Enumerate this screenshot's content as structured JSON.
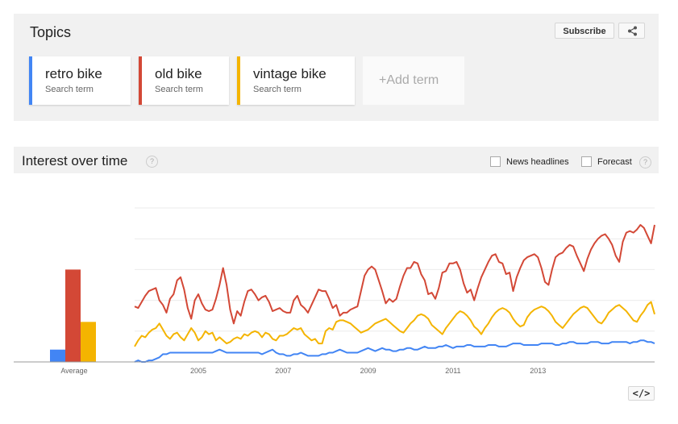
{
  "topics": {
    "title": "Topics",
    "subscribe_label": "Subscribe",
    "share_icon": "share-icon",
    "add_term_label": "+Add term",
    "terms": [
      {
        "name": "retro bike",
        "sub": "Search term",
        "color": "#4285f4"
      },
      {
        "name": "old bike",
        "sub": "Search term",
        "color": "#d34836"
      },
      {
        "name": "vintage bike",
        "sub": "Search term",
        "color": "#f4b400"
      }
    ]
  },
  "interest": {
    "title": "Interest over time",
    "help_icon": "?",
    "news_label": "News headlines",
    "forecast_label": "Forecast",
    "embed_label": "</>"
  },
  "chart_data": {
    "type": "line",
    "x_range": [
      "2004-01",
      "2014-11"
    ],
    "x_ticks": [
      "2005",
      "2007",
      "2009",
      "2011",
      "2013"
    ],
    "ylim": [
      0,
      100
    ],
    "grid": true,
    "legend": "none",
    "average_bars": {
      "label": "Average",
      "values": [
        8,
        60,
        26
      ],
      "colors": [
        "#4285f4",
        "#d34836",
        "#f4b400"
      ]
    },
    "series": [
      {
        "name": "old bike",
        "color": "#d34836",
        "values": [
          36,
          35,
          39,
          43,
          46,
          47,
          48,
          40,
          37,
          32,
          41,
          44,
          53,
          55,
          47,
          35,
          28,
          40,
          44,
          38,
          34,
          33,
          34,
          41,
          50,
          61,
          50,
          34,
          25,
          33,
          30,
          39,
          46,
          47,
          44,
          40,
          42,
          43,
          39,
          33,
          34,
          35,
          33,
          32,
          32,
          40,
          43,
          37,
          35,
          32,
          37,
          42,
          47,
          46,
          46,
          41,
          35,
          37,
          30,
          32,
          32,
          34,
          35,
          36,
          46,
          56,
          60,
          62,
          60,
          53,
          46,
          38,
          41,
          39,
          41,
          49,
          56,
          61,
          61,
          65,
          64,
          57,
          53,
          44,
          45,
          41,
          48,
          58,
          59,
          64,
          64,
          65,
          60,
          51,
          45,
          47,
          40,
          48,
          55,
          60,
          65,
          69,
          70,
          65,
          64,
          57,
          58,
          46,
          55,
          61,
          66,
          68,
          69,
          70,
          68,
          61,
          52,
          50,
          60,
          68,
          70,
          71,
          74,
          76,
          75,
          69,
          64,
          59,
          67,
          73,
          77,
          80,
          82,
          83,
          80,
          76,
          69,
          65,
          78,
          84,
          85,
          84,
          86,
          89,
          87,
          82,
          77,
          89
        ]
      },
      {
        "name": "vintage bike",
        "color": "#f4b400",
        "values": [
          10,
          14,
          17,
          16,
          19,
          21,
          22,
          25,
          21,
          17,
          15,
          18,
          19,
          16,
          14,
          18,
          22,
          19,
          14,
          16,
          20,
          18,
          19,
          14,
          16,
          14,
          12,
          13,
          15,
          16,
          15,
          18,
          17,
          19,
          20,
          19,
          16,
          19,
          18,
          15,
          14,
          17,
          17,
          18,
          20,
          22,
          21,
          22,
          18,
          16,
          14,
          15,
          12,
          12,
          20,
          22,
          21,
          26,
          27,
          27,
          26,
          25,
          23,
          21,
          19,
          20,
          21,
          23,
          25,
          26,
          27,
          28,
          26,
          24,
          22,
          20,
          19,
          22,
          25,
          27,
          30,
          31,
          30,
          28,
          24,
          22,
          20,
          18,
          22,
          25,
          28,
          31,
          33,
          32,
          30,
          27,
          23,
          21,
          18,
          22,
          25,
          29,
          32,
          34,
          35,
          34,
          32,
          28,
          25,
          23,
          24,
          29,
          32,
          34,
          35,
          36,
          35,
          33,
          30,
          26,
          24,
          22,
          25,
          28,
          31,
          33,
          35,
          36,
          35,
          32,
          29,
          26,
          25,
          28,
          32,
          34,
          36,
          37,
          35,
          33,
          30,
          27,
          26,
          30,
          33,
          37,
          39,
          31
        ]
      },
      {
        "name": "retro bike",
        "color": "#4285f4",
        "values": [
          0,
          1,
          0,
          0,
          1,
          1,
          2,
          3,
          5,
          5,
          6,
          6,
          6,
          6,
          6,
          6,
          6,
          6,
          6,
          6,
          6,
          6,
          6,
          7,
          8,
          7,
          6,
          6,
          6,
          6,
          6,
          6,
          6,
          6,
          6,
          6,
          5,
          6,
          7,
          8,
          6,
          5,
          5,
          4,
          4,
          5,
          5,
          6,
          5,
          4,
          4,
          4,
          4,
          5,
          5,
          6,
          6,
          7,
          8,
          7,
          6,
          6,
          6,
          6,
          7,
          8,
          9,
          8,
          7,
          8,
          9,
          8,
          8,
          7,
          7,
          8,
          8,
          9,
          9,
          8,
          8,
          9,
          10,
          9,
          9,
          9,
          10,
          10,
          11,
          10,
          9,
          10,
          10,
          10,
          11,
          11,
          10,
          10,
          10,
          10,
          11,
          11,
          11,
          10,
          10,
          10,
          11,
          12,
          12,
          12,
          11,
          11,
          11,
          11,
          11,
          12,
          12,
          12,
          12,
          11,
          11,
          12,
          12,
          13,
          13,
          12,
          12,
          12,
          12,
          13,
          13,
          13,
          12,
          12,
          12,
          13,
          13,
          13,
          13,
          13,
          12,
          13,
          13,
          14,
          14,
          13,
          13,
          12
        ]
      }
    ]
  }
}
